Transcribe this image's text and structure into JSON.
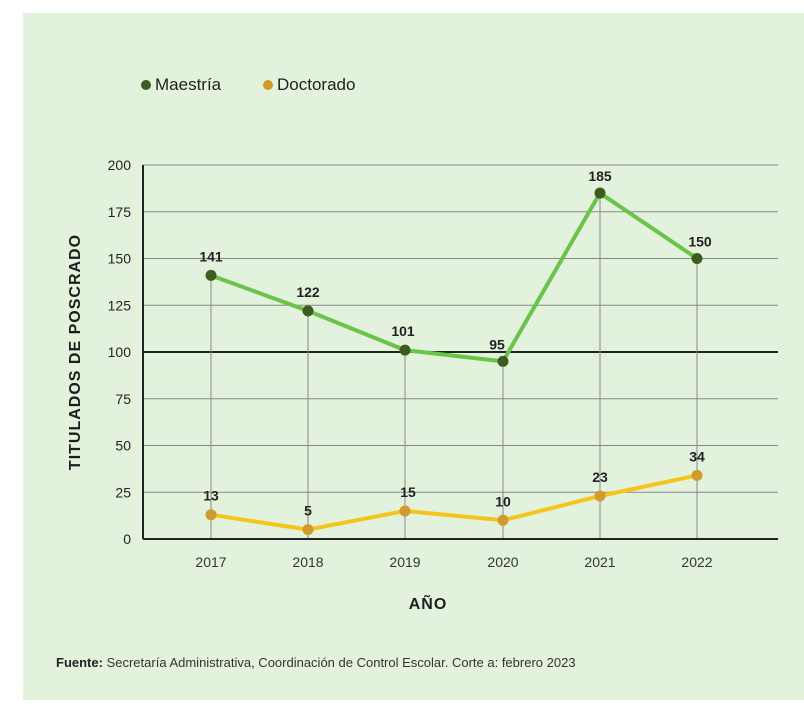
{
  "source": {
    "label": "Fuente:",
    "text": "Secretaría Administrativa, Coordinación de Control Escolar. Corte a: febrero 2023"
  },
  "colors": {
    "maestria_line": "#6ac44b",
    "maestria_point": "#3d5c1e",
    "doctorado_line": "#f6c51b",
    "doctorado_point": "#d09a2e",
    "grid": "#888888",
    "background": "#e3f2dc"
  },
  "chart_data": {
    "type": "line",
    "xlabel": "AÑO",
    "ylabel": "TITULADOS DE POSCRADO",
    "ylim": [
      0,
      200
    ],
    "yticks": [
      0,
      25,
      50,
      75,
      100,
      125,
      150,
      175,
      200
    ],
    "grid": true,
    "legend_position": "top-left",
    "categories": [
      "2017",
      "2018",
      "2019",
      "2020",
      "2021",
      "2022"
    ],
    "series": [
      {
        "name": "Maestría",
        "values": [
          141,
          122,
          101,
          95,
          185,
          150
        ]
      },
      {
        "name": "Doctorado",
        "values": [
          13,
          5,
          15,
          10,
          23,
          34
        ]
      }
    ]
  }
}
